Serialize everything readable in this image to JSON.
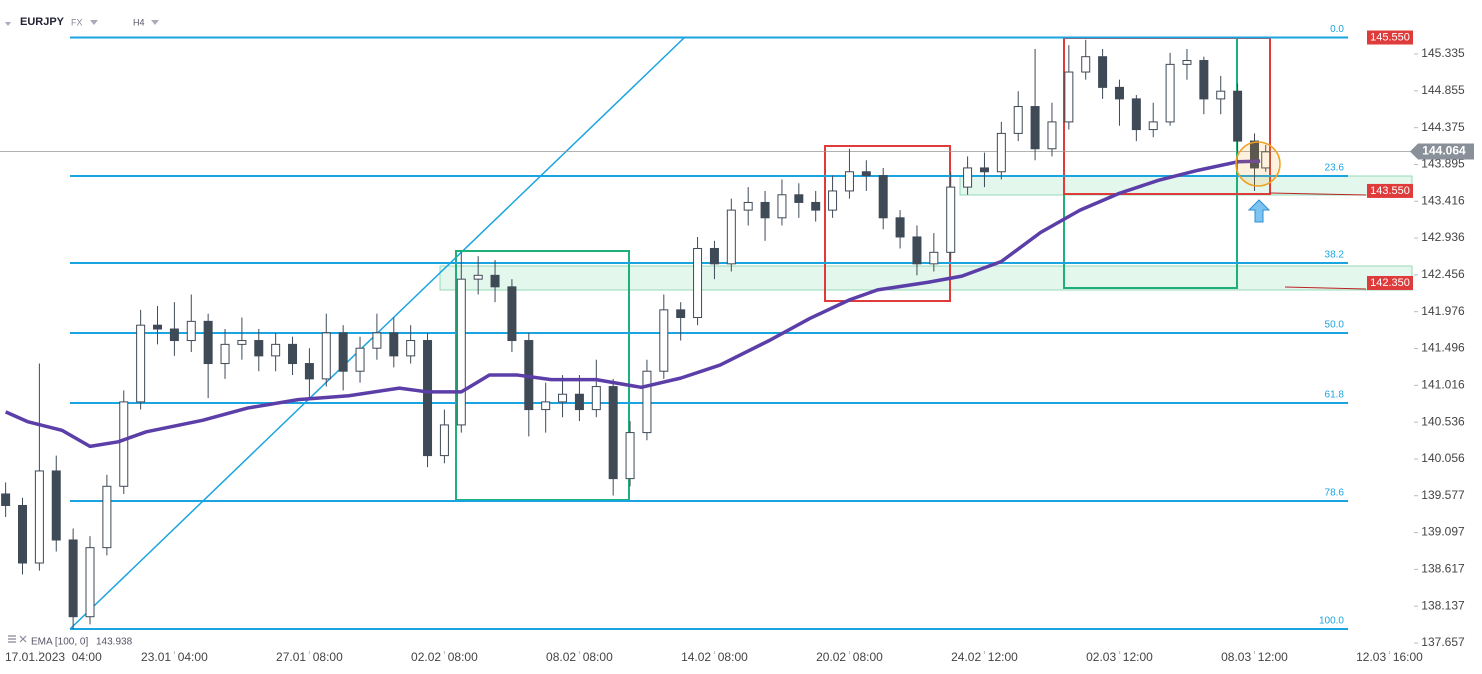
{
  "chart_data": {
    "type": "candlestick",
    "symbol": "EURJPY",
    "market": "FX",
    "interval": "H4",
    "up_color": "#ffffff",
    "down_color": "#3f4a57",
    "wick_color": "#3f4a57",
    "x": [
      0,
      3,
      6,
      9,
      12,
      15,
      18,
      21,
      24,
      27,
      30,
      33,
      36,
      39,
      42,
      45,
      48,
      51,
      54,
      57,
      60,
      63,
      66,
      69,
      72,
      75,
      78,
      81,
      84,
      87,
      90,
      93,
      96,
      99,
      102,
      105,
      108,
      111,
      114,
      117,
      120,
      123,
      126,
      129,
      132,
      135,
      138,
      141,
      144,
      147,
      150,
      153,
      156,
      159,
      162,
      165,
      168,
      171,
      174,
      177,
      180,
      183,
      186,
      189,
      192,
      195,
      198,
      201,
      204,
      207,
      210,
      213,
      216,
      219,
      222,
      224
    ],
    "open": [
      139.6,
      139.45,
      138.7,
      139.9,
      139.0,
      138.0,
      138.9,
      139.7,
      140.8,
      141.8,
      141.75,
      141.6,
      141.85,
      141.3,
      141.55,
      141.6,
      141.4,
      141.55,
      141.3,
      141.1,
      141.7,
      141.2,
      141.5,
      141.7,
      141.4,
      141.6,
      140.1,
      140.5,
      142.4,
      142.45,
      142.3,
      141.6,
      140.7,
      140.8,
      140.9,
      140.7,
      141.0,
      139.8,
      140.4,
      141.2,
      142.0,
      141.9,
      142.8,
      142.6,
      143.3,
      143.4,
      143.2,
      143.5,
      143.4,
      143.3,
      143.55,
      143.8,
      143.75,
      143.2,
      142.95,
      142.6,
      142.75,
      143.6,
      143.85,
      143.8,
      144.3,
      144.65,
      144.1,
      144.45,
      145.1,
      145.3,
      144.9,
      144.75,
      144.35,
      144.45,
      145.2,
      145.25,
      144.75,
      144.85,
      144.2,
      143.85
    ],
    "high": [
      139.75,
      139.55,
      141.3,
      140.1,
      139.15,
      139.05,
      139.85,
      140.95,
      142.0,
      142.05,
      142.1,
      142.2,
      141.95,
      141.75,
      141.9,
      141.75,
      141.7,
      141.65,
      141.5,
      141.95,
      141.8,
      141.65,
      141.95,
      141.9,
      141.8,
      141.7,
      140.7,
      142.75,
      142.7,
      142.65,
      142.4,
      141.7,
      141.05,
      141.15,
      141.15,
      141.35,
      141.1,
      140.55,
      141.35,
      142.2,
      142.1,
      142.95,
      142.9,
      143.45,
      143.6,
      143.55,
      143.7,
      143.65,
      143.55,
      143.75,
      144.1,
      143.95,
      143.85,
      143.3,
      143.1,
      143.0,
      143.8,
      144.0,
      144.05,
      144.45,
      144.85,
      145.4,
      144.7,
      145.45,
      145.52,
      145.4,
      145.0,
      144.8,
      144.7,
      145.35,
      145.4,
      145.3,
      145.05,
      144.95,
      144.3,
      144.15
    ],
    "low": [
      139.3,
      138.55,
      138.6,
      138.85,
      137.84,
      137.9,
      138.8,
      139.6,
      140.7,
      141.55,
      141.4,
      141.45,
      140.85,
      141.1,
      141.35,
      141.2,
      141.2,
      141.15,
      140.85,
      141.0,
      140.95,
      141.05,
      141.35,
      141.25,
      141.3,
      139.95,
      140.0,
      140.4,
      142.2,
      142.1,
      141.45,
      140.35,
      140.4,
      140.6,
      140.55,
      140.6,
      139.58,
      139.7,
      140.3,
      141.1,
      141.6,
      141.8,
      142.4,
      142.5,
      143.1,
      142.9,
      143.1,
      143.2,
      143.15,
      143.2,
      143.45,
      143.55,
      143.05,
      142.8,
      142.45,
      142.5,
      142.65,
      143.5,
      143.6,
      143.7,
      144.2,
      143.95,
      144.0,
      144.35,
      145.0,
      144.75,
      144.4,
      144.2,
      144.25,
      144.4,
      145.0,
      144.55,
      144.55,
      144.05,
      143.55,
      143.8
    ],
    "close": [
      139.45,
      138.7,
      139.9,
      139.0,
      138.0,
      138.9,
      139.7,
      140.8,
      141.8,
      141.75,
      141.6,
      141.85,
      141.3,
      141.55,
      141.6,
      141.4,
      141.55,
      141.3,
      141.1,
      141.7,
      141.2,
      141.5,
      141.7,
      141.4,
      141.6,
      140.1,
      140.5,
      142.4,
      142.45,
      142.3,
      141.6,
      140.7,
      140.8,
      140.9,
      140.7,
      141.0,
      139.8,
      140.4,
      141.2,
      142.0,
      141.9,
      142.8,
      142.6,
      143.3,
      143.4,
      143.2,
      143.5,
      143.4,
      143.3,
      143.55,
      143.8,
      143.75,
      143.2,
      142.95,
      142.6,
      142.75,
      143.6,
      143.85,
      143.8,
      144.3,
      144.65,
      144.1,
      144.45,
      145.1,
      145.3,
      144.9,
      144.75,
      144.35,
      144.45,
      145.2,
      145.25,
      144.75,
      144.85,
      144.2,
      143.85,
      144.06
    ],
    "ema": {
      "name": "EMA [100, 0]",
      "last": 143.938,
      "color": "#5b3ea8",
      "x": [
        0,
        4,
        10,
        15,
        20,
        25,
        35,
        43,
        52,
        61,
        70,
        75,
        81,
        86,
        91,
        97,
        105,
        113,
        120,
        127,
        136,
        143,
        150,
        155,
        164,
        170,
        177,
        184,
        191,
        198,
        205,
        212,
        219,
        223
      ],
      "values": [
        140.67,
        140.54,
        140.43,
        140.22,
        140.28,
        140.41,
        140.56,
        140.72,
        140.83,
        140.88,
        140.98,
        140.93,
        140.93,
        141.15,
        141.15,
        141.09,
        141.09,
        140.99,
        141.11,
        141.28,
        141.61,
        141.89,
        142.13,
        142.26,
        142.36,
        142.44,
        142.63,
        143.01,
        143.3,
        143.52,
        143.69,
        143.82,
        143.93,
        143.938
      ]
    },
    "fib_levels": [
      {
        "label": "0.0",
        "value": 145.55
      },
      {
        "label": "23.6",
        "value": 143.745
      },
      {
        "label": "38.2",
        "value": 142.61
      },
      {
        "label": "50.0",
        "value": 141.698
      },
      {
        "label": "61.8",
        "value": 140.785
      },
      {
        "label": "78.6",
        "value": 139.508
      },
      {
        "label": "100.0",
        "value": 137.839
      }
    ],
    "price_tags": [
      {
        "value": 145.55,
        "label": "145.550"
      },
      {
        "value": 143.55,
        "label": "143.550"
      },
      {
        "value": 142.35,
        "label": "142.350"
      }
    ],
    "current_price": 144.064,
    "xlim": [
      -1,
      250
    ],
    "ylim": [
      137.566,
      146.039
    ],
    "yticks": [
      145.335,
      144.855,
      144.375,
      143.895,
      143.416,
      142.936,
      142.456,
      141.976,
      141.496,
      141.016,
      140.536,
      140.056,
      139.577,
      139.097,
      138.617,
      138.137,
      137.657
    ],
    "xticks": [
      {
        "value": 6,
        "label": "17.01.2023  04:00"
      },
      {
        "value": 30,
        "label": "23.01  04:00"
      },
      {
        "value": 54,
        "label": "27.01  08:00"
      },
      {
        "value": 78,
        "label": "02.02  08:00"
      },
      {
        "value": 102,
        "label": "08.02  08:00"
      },
      {
        "value": 126,
        "label": "14.02  08:00"
      },
      {
        "value": 150,
        "label": "20.02  08:00"
      },
      {
        "value": 174,
        "label": "24.02  12:00"
      },
      {
        "value": 198,
        "label": "02.03  12:00"
      },
      {
        "value": 222,
        "label": "08.03  12:00"
      },
      {
        "value": 246,
        "label": "12.03  16:00"
      }
    ]
  }
}
